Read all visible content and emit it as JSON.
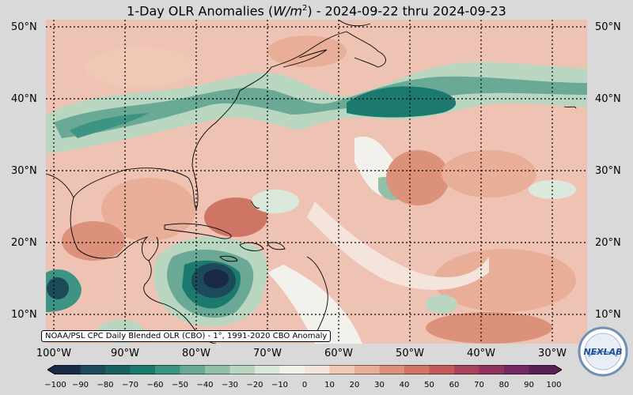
{
  "title": "1-Day OLR Anomalies (W/m²) - 2024-09-22 thru 2024-09-23",
  "title_parts": {
    "prefix": "1-Day OLR Anomalies (",
    "unit_base": "W/m",
    "unit_exp": "2",
    "suffix": ") - 2024-09-22 thru 2024-09-23"
  },
  "credit": "NOAA/PSL CPC Daily Blended OLR (CBO) - 1°, 1991-2020 CBO Anomaly",
  "logo_text": "NEXLAB",
  "lat_labels": [
    "50°N",
    "40°N",
    "30°N",
    "20°N",
    "10°N"
  ],
  "lon_labels": [
    "100°W",
    "90°W",
    "80°W",
    "70°W",
    "60°W",
    "50°W",
    "40°W",
    "30°W"
  ],
  "colorbar": {
    "ticks": [
      "−100",
      "−90",
      "−80",
      "−70",
      "−60",
      "−50",
      "−40",
      "−30",
      "−20",
      "−10",
      "0",
      "10",
      "20",
      "30",
      "40",
      "50",
      "60",
      "70",
      "80",
      "90",
      "100"
    ],
    "colors": [
      "#1b2a44",
      "#1d4a5a",
      "#17615f",
      "#1b7a6d",
      "#3d9384",
      "#6aa996",
      "#93c0a8",
      "#b9d6c0",
      "#dbe9dc",
      "#f3f1ec",
      "#f5e4db",
      "#f0c9b6",
      "#e8ae97",
      "#dc917b",
      "#cf7565",
      "#c05a5b",
      "#a8435e",
      "#8e3260",
      "#742862",
      "#5a2056"
    ]
  },
  "map": {
    "extent": {
      "lon_min": -101,
      "lon_max": -25,
      "lat_min": 6,
      "lat_max": 51
    },
    "gridline_style": "dotted",
    "features": [
      "Gulf of Mexico",
      "Caribbean Sea",
      "Atlantic Ocean",
      "Florida",
      "Cuba",
      "Central America"
    ]
  }
}
